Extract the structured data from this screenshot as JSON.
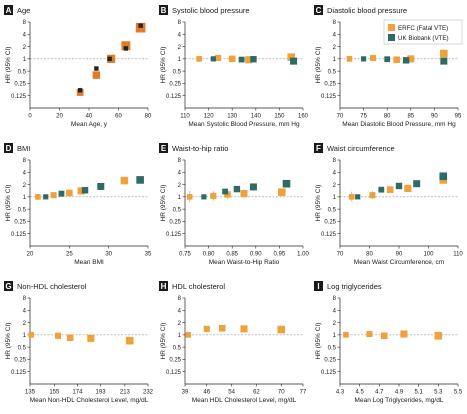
{
  "legend": {
    "entries": [
      {
        "label": "ERFC (Fatal VTE)",
        "color": "#f0a23a"
      },
      {
        "label": "UK Biobank (VTE)",
        "color": "#2f6b66"
      }
    ]
  },
  "colors": {
    "erfc": "#f0a23a",
    "ukb": "#2f6b66",
    "age_erfc": "#e07b2a",
    "age_ukb": "#222222",
    "axis": "#222222",
    "ref_line": "#9a9a9a",
    "ci": "#b5b5b5"
  },
  "ylabel": "HR (95% CI)",
  "chart_data": [
    {
      "id": "A",
      "letter": "A",
      "title": "Age",
      "type": "scatter",
      "xlabel": "Mean Age, y",
      "xlim": [
        0,
        80
      ],
      "xticks": [
        "0",
        "20",
        "40",
        "60",
        "80"
      ],
      "xtickvals": [
        0,
        20,
        40,
        60,
        80
      ],
      "ylim": [
        0.0625,
        8
      ],
      "yscale": "log",
      "yticks": [
        "8",
        "4",
        "2",
        "1",
        "0.5",
        "0.25",
        "0.125"
      ],
      "series": [
        {
          "source": "erfc",
          "points": [
            {
              "x": 34,
              "y": 0.15,
              "lo": 0.12,
              "hi": 0.2
            },
            {
              "x": 45,
              "y": 0.4,
              "lo": 0.35,
              "hi": 0.46
            },
            {
              "x": 55,
              "y": 1.0,
              "lo": 0.93,
              "hi": 1.07
            },
            {
              "x": 65,
              "y": 2.1,
              "lo": 1.9,
              "hi": 2.3
            },
            {
              "x": 75,
              "y": 5.8,
              "lo": 5.0,
              "hi": 6.6
            }
          ]
        },
        {
          "source": "ukb",
          "points": [
            {
              "x": 34,
              "y": 0.17
            },
            {
              "x": 45,
              "y": 0.58
            },
            {
              "x": 54,
              "y": 1.0
            },
            {
              "x": 65,
              "y": 1.8
            },
            {
              "x": 75,
              "y": 6.5
            }
          ]
        }
      ]
    },
    {
      "id": "B",
      "letter": "B",
      "title": "Systolic blood pressure",
      "type": "scatter",
      "xlabel": "Mean Systolic Blood Pressure, mm Hg",
      "xlim": [
        110,
        160
      ],
      "xticks": [
        "110",
        "120",
        "130",
        "140",
        "150",
        "160"
      ],
      "xtickvals": [
        110,
        120,
        130,
        140,
        150,
        160
      ],
      "ylim": [
        0.0625,
        8
      ],
      "yscale": "log",
      "yticks": [
        "8",
        "4",
        "2",
        "1",
        "0.5",
        "0.25",
        "0.125"
      ],
      "series": [
        {
          "source": "erfc",
          "points": [
            {
              "x": 116,
              "y": 1.0,
              "lo": 0.85,
              "hi": 1.18
            },
            {
              "x": 124,
              "y": 1.05,
              "lo": 0.92,
              "hi": 1.2
            },
            {
              "x": 130,
              "y": 1.0,
              "lo": 0.9,
              "hi": 1.12
            },
            {
              "x": 137,
              "y": 0.95,
              "lo": 0.85,
              "hi": 1.07
            },
            {
              "x": 155,
              "y": 1.1,
              "lo": 0.95,
              "hi": 1.3
            }
          ]
        },
        {
          "source": "ukb",
          "points": [
            {
              "x": 122,
              "y": 1.0
            },
            {
              "x": 134,
              "y": 0.96
            },
            {
              "x": 139,
              "y": 0.98
            },
            {
              "x": 156,
              "y": 0.88
            }
          ]
        }
      ]
    },
    {
      "id": "C",
      "letter": "C",
      "title": "Diastolic blood pressure",
      "type": "scatter",
      "xlabel": "Mean Diastolic Blood Pressure, mm Hg",
      "xlim": [
        70,
        95
      ],
      "xticks": [
        "70",
        "75",
        "80",
        "85",
        "90",
        "95"
      ],
      "xtickvals": [
        70,
        75,
        80,
        85,
        90,
        95
      ],
      "ylim": [
        0.0625,
        8
      ],
      "yscale": "log",
      "yticks": [
        "8",
        "4",
        "2",
        "1",
        "0.5",
        "0.25",
        "0.125"
      ],
      "series": [
        {
          "source": "erfc",
          "points": [
            {
              "x": 72,
              "y": 1.0,
              "lo": 0.85,
              "hi": 1.18
            },
            {
              "x": 77,
              "y": 1.05,
              "lo": 0.9,
              "hi": 1.2
            },
            {
              "x": 82,
              "y": 0.95,
              "lo": 0.82,
              "hi": 1.08
            },
            {
              "x": 85,
              "y": 1.0,
              "lo": 0.88,
              "hi": 1.12
            },
            {
              "x": 92,
              "y": 1.35,
              "lo": 1.2,
              "hi": 1.5
            }
          ]
        },
        {
          "source": "ukb",
          "points": [
            {
              "x": 75,
              "y": 1.0
            },
            {
              "x": 80,
              "y": 0.98
            },
            {
              "x": 84,
              "y": 0.92
            },
            {
              "x": 92,
              "y": 0.88
            }
          ]
        }
      ]
    },
    {
      "id": "D",
      "letter": "D",
      "title": "BMI",
      "type": "scatter",
      "xlabel": "Mean BMI",
      "xlim": [
        20,
        35
      ],
      "xticks": [
        "20",
        "25",
        "30",
        "35"
      ],
      "xtickvals": [
        20,
        25,
        30,
        35
      ],
      "ylim": [
        0.0625,
        8
      ],
      "yscale": "log",
      "yticks": [
        "8",
        "4",
        "2",
        "1",
        "0.5",
        "0.25",
        "0.125"
      ],
      "series": [
        {
          "source": "erfc",
          "points": [
            {
              "x": 21,
              "y": 1.0,
              "lo": 0.85,
              "hi": 1.15
            },
            {
              "x": 23,
              "y": 1.1,
              "lo": 0.95,
              "hi": 1.25
            },
            {
              "x": 25,
              "y": 1.25,
              "lo": 1.12,
              "hi": 1.4
            },
            {
              "x": 26.5,
              "y": 1.4,
              "lo": 1.25,
              "hi": 1.6
            },
            {
              "x": 32,
              "y": 2.5,
              "lo": 2.2,
              "hi": 2.8
            }
          ]
        },
        {
          "source": "ukb",
          "points": [
            {
              "x": 22,
              "y": 1.0
            },
            {
              "x": 24,
              "y": 1.2
            },
            {
              "x": 27,
              "y": 1.45
            },
            {
              "x": 29,
              "y": 1.8
            },
            {
              "x": 34,
              "y": 2.6
            }
          ]
        }
      ]
    },
    {
      "id": "E",
      "letter": "E",
      "title": "Waist-to-hip ratio",
      "type": "scatter",
      "xlabel": "Mean Waist-to-Hip Ratio",
      "xlim": [
        0.75,
        1.0
      ],
      "xticks": [
        "0.75",
        "0.80",
        "0.85",
        "0.90",
        "0.95",
        "1.00"
      ],
      "xtickvals": [
        0.75,
        0.8,
        0.85,
        0.9,
        0.95,
        1.0
      ],
      "ylim": [
        0.0625,
        8
      ],
      "yscale": "log",
      "yticks": [
        "8",
        "4",
        "2",
        "1",
        "0.5",
        "0.25",
        "0.125"
      ],
      "series": [
        {
          "source": "erfc",
          "points": [
            {
              "x": 0.76,
              "y": 1.0,
              "lo": 0.75,
              "hi": 1.4
            },
            {
              "x": 0.81,
              "y": 1.05,
              "lo": 0.8,
              "hi": 1.4
            },
            {
              "x": 0.84,
              "y": 1.15,
              "lo": 0.9,
              "hi": 1.5
            },
            {
              "x": 0.875,
              "y": 1.2,
              "lo": 0.95,
              "hi": 1.55
            },
            {
              "x": 0.955,
              "y": 1.3,
              "lo": 1.05,
              "hi": 1.6
            }
          ]
        },
        {
          "source": "ukb",
          "points": [
            {
              "x": 0.79,
              "y": 1.0
            },
            {
              "x": 0.835,
              "y": 1.35
            },
            {
              "x": 0.86,
              "y": 1.55
            },
            {
              "x": 0.895,
              "y": 1.75
            },
            {
              "x": 0.965,
              "y": 2.1
            }
          ]
        }
      ]
    },
    {
      "id": "F",
      "letter": "F",
      "title": "Waist circumference",
      "type": "scatter",
      "xlabel": "Mean Waist Circumference, cm",
      "xlim": [
        70,
        110
      ],
      "xticks": [
        "70",
        "80",
        "90",
        "100",
        "110"
      ],
      "xtickvals": [
        70,
        80,
        90,
        100,
        110
      ],
      "ylim": [
        0.0625,
        8
      ],
      "yscale": "log",
      "yticks": [
        "8",
        "4",
        "2",
        "1",
        "0.5",
        "0.25",
        "0.125"
      ],
      "series": [
        {
          "source": "erfc",
          "points": [
            {
              "x": 74,
              "y": 1.0,
              "lo": 0.75,
              "hi": 1.35
            },
            {
              "x": 81,
              "y": 1.1,
              "lo": 0.88,
              "hi": 1.4
            },
            {
              "x": 87,
              "y": 1.5,
              "lo": 1.25,
              "hi": 1.8
            },
            {
              "x": 93,
              "y": 1.6,
              "lo": 1.35,
              "hi": 1.9
            },
            {
              "x": 105,
              "y": 2.6,
              "lo": 2.2,
              "hi": 3.1
            }
          ]
        },
        {
          "source": "ukb",
          "points": [
            {
              "x": 76,
              "y": 1.0
            },
            {
              "x": 84,
              "y": 1.5
            },
            {
              "x": 90,
              "y": 1.85
            },
            {
              "x": 96,
              "y": 2.1
            },
            {
              "x": 105,
              "y": 3.2
            }
          ]
        }
      ]
    },
    {
      "id": "G",
      "letter": "G",
      "title": "Non-HDL cholesterol",
      "type": "scatter",
      "xlabel": "Mean Non-HDL Cholesterol Level, mg/dL",
      "xlim": [
        135,
        232
      ],
      "xticks": [
        "135",
        "155",
        "174",
        "193",
        "213",
        "232"
      ],
      "xtickvals": [
        135,
        155,
        174,
        193,
        213,
        232
      ],
      "ylim": [
        0.0625,
        8
      ],
      "yscale": "log",
      "yticks": [
        "8",
        "4",
        "2",
        "1",
        "0.5",
        "0.25",
        "0.125"
      ],
      "series": [
        {
          "source": "erfc",
          "points": [
            {
              "x": 136,
              "y": 1.0,
              "lo": 0.85,
              "hi": 1.2
            },
            {
              "x": 158,
              "y": 0.95,
              "lo": 0.8,
              "hi": 1.12
            },
            {
              "x": 168,
              "y": 0.85,
              "lo": 0.72,
              "hi": 1.0
            },
            {
              "x": 185,
              "y": 0.82,
              "lo": 0.7,
              "hi": 0.96
            },
            {
              "x": 217,
              "y": 0.72,
              "lo": 0.6,
              "hi": 0.86
            }
          ]
        }
      ]
    },
    {
      "id": "H",
      "letter": "H",
      "title": "HDL cholesterol",
      "type": "scatter",
      "xlabel": "Mean HDL Cholesterol Level, mg/dL",
      "xlim": [
        39,
        77
      ],
      "xticks": [
        "39",
        "46",
        "54",
        "62",
        "70",
        "77"
      ],
      "xtickvals": [
        39,
        46,
        54,
        62,
        70,
        77
      ],
      "ylim": [
        0.0625,
        8
      ],
      "yscale": "log",
      "yticks": [
        "8",
        "4",
        "2",
        "1",
        "0.5",
        "0.25",
        "0.125"
      ],
      "series": [
        {
          "source": "erfc",
          "points": [
            {
              "x": 40,
              "y": 1.0,
              "lo": 0.85,
              "hi": 1.2
            },
            {
              "x": 46,
              "y": 1.4,
              "lo": 1.2,
              "hi": 1.65
            },
            {
              "x": 51,
              "y": 1.45,
              "lo": 1.25,
              "hi": 1.7
            },
            {
              "x": 58,
              "y": 1.4,
              "lo": 1.2,
              "hi": 1.65
            },
            {
              "x": 70,
              "y": 1.35,
              "lo": 1.1,
              "hi": 1.65
            }
          ]
        }
      ]
    },
    {
      "id": "I",
      "letter": "I",
      "title": "Log triglycerides",
      "type": "scatter",
      "xlabel": "Mean Log Triglycerides, mg/dL",
      "xlim": [
        4.3,
        5.5
      ],
      "xticks": [
        "4.3",
        "4.5",
        "4.7",
        "4.9",
        "5.1",
        "5.3",
        "5.5"
      ],
      "xtickvals": [
        4.3,
        4.5,
        4.7,
        4.9,
        5.1,
        5.3,
        5.5
      ],
      "ylim": [
        0.0625,
        8
      ],
      "yscale": "log",
      "yticks": [
        "8",
        "4",
        "2",
        "1",
        "0.5",
        "0.25",
        "0.125"
      ],
      "series": [
        {
          "source": "erfc",
          "points": [
            {
              "x": 4.36,
              "y": 1.0,
              "lo": 0.85,
              "hi": 1.18
            },
            {
              "x": 4.6,
              "y": 1.05,
              "lo": 0.92,
              "hi": 1.2
            },
            {
              "x": 4.75,
              "y": 0.95,
              "lo": 0.82,
              "hi": 1.1
            },
            {
              "x": 4.95,
              "y": 1.05,
              "lo": 0.92,
              "hi": 1.2
            },
            {
              "x": 5.3,
              "y": 0.95,
              "lo": 0.82,
              "hi": 1.1
            }
          ]
        }
      ]
    }
  ]
}
